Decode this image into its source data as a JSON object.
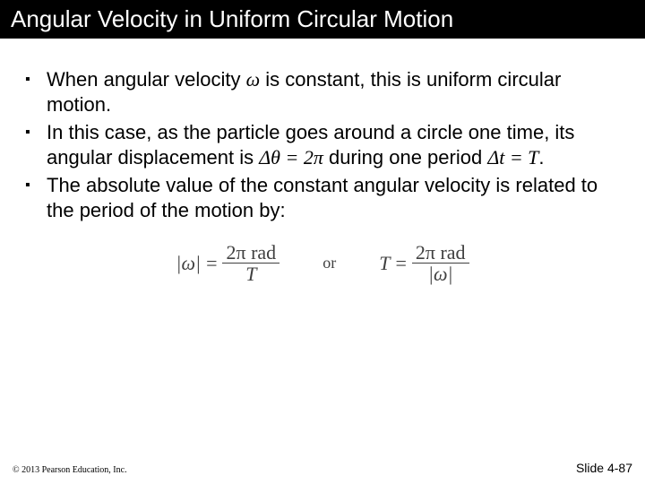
{
  "title": "Angular Velocity in Uniform Circular Motion",
  "bullets": [
    {
      "pre": "When angular velocity ",
      "sym1": "ω",
      "mid": " is constant, this is uniform circular motion."
    },
    {
      "pre": "In this case, as the particle goes around a circle one time, its angular displacement is ",
      "sym1": "Δθ = 2π",
      "mid": " during one period ",
      "sym2": "Δt = T",
      "post": "."
    },
    {
      "pre": "The absolute value of the constant angular velocity is related to the period of the motion by:"
    }
  ],
  "formula": {
    "lhs1": "|ω|",
    "eq": "=",
    "num1": "2π rad",
    "den1": "T",
    "or": "or",
    "lhs2": "T",
    "num2": "2π rad",
    "den2": "|ω|"
  },
  "footer": {
    "copyright": "© 2013 Pearson Education, Inc.",
    "slide": "Slide 4-87"
  },
  "style": {
    "title_bg": "#000000",
    "title_color": "#ffffff",
    "title_fontsize": 26,
    "body_fontsize": 22,
    "formula_color": "#404040",
    "bullet_marker": "▪"
  }
}
